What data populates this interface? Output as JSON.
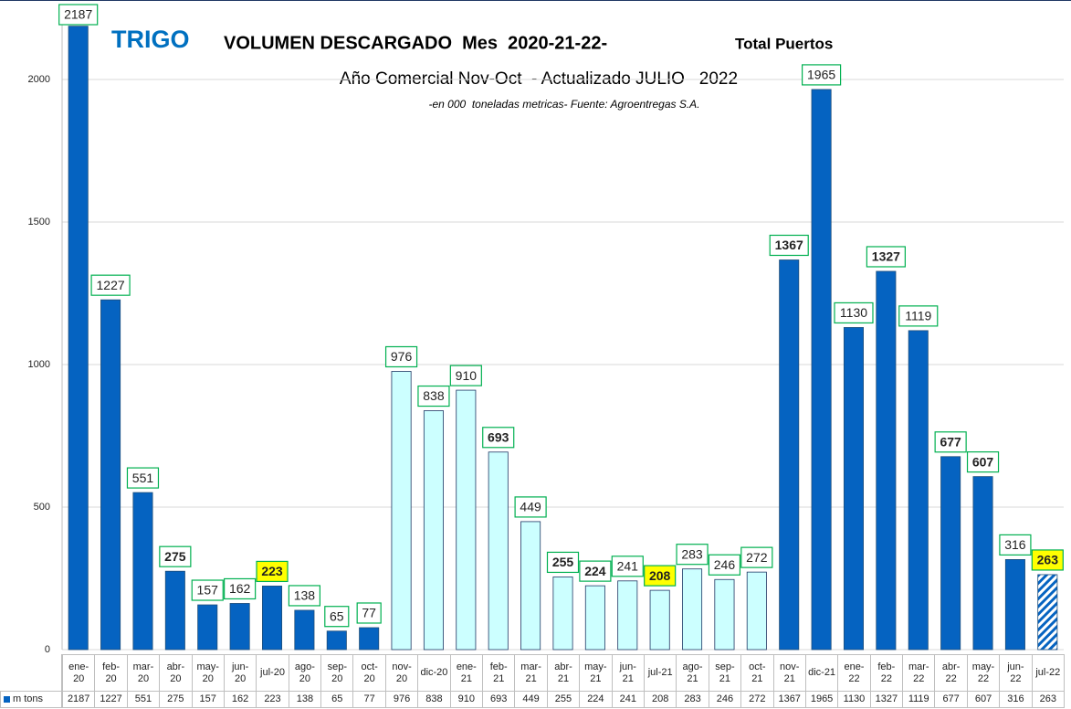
{
  "chart_data": {
    "type": "bar",
    "title": "TRIGO",
    "title_rest": "VOLUMEN DESCARGADO  Mes  2020-21-22-",
    "title_tail": "Total Puertos",
    "subtitle": "Año Comercial Nov-Oct  - Actualizado JULIO   2022",
    "note": "-en 000  toneladas metricas- Fuente: Agroentregas S.A.",
    "series_name": "m tons",
    "categories": [
      "ene-20",
      "feb-20",
      "mar-20",
      "abr-20",
      "may-20",
      "jun-20",
      "jul-20",
      "ago-20",
      "sep-20",
      "oct-20",
      "nov-20",
      "dic-20",
      "ene-21",
      "feb-21",
      "mar-21",
      "abr-21",
      "may-21",
      "jun-21",
      "jul-21",
      "ago-21",
      "sep-21",
      "oct-21",
      "nov-21",
      "dic-21",
      "ene-22",
      "feb-22",
      "mar-22",
      "abr-22",
      "may-22",
      "jun-22",
      "jul-22"
    ],
    "values": [
      2187,
      1227,
      551,
      275,
      157,
      162,
      223,
      138,
      65,
      77,
      976,
      838,
      910,
      693,
      449,
      255,
      224,
      241,
      208,
      283,
      246,
      272,
      1367,
      1965,
      1130,
      1327,
      1119,
      677,
      607,
      316,
      263
    ],
    "colors": [
      "#0563c1",
      "#0563c1",
      "#0563c1",
      "#0563c1",
      "#0563c1",
      "#0563c1",
      "#0563c1",
      "#0563c1",
      "#0563c1",
      "#0563c1",
      "#ccffff",
      "#ccffff",
      "#ccffff",
      "#ccffff",
      "#ccffff",
      "#ccffff",
      "#ccffff",
      "#ccffff",
      "#ccffff",
      "#ccffff",
      "#ccffff",
      "#ccffff",
      "#0563c1",
      "#0563c1",
      "#0563c1",
      "#0563c1",
      "#0563c1",
      "#0563c1",
      "#0563c1",
      "#0563c1",
      "#5b9bd5"
    ],
    "label_fill": [
      "#ffffff",
      "#ffffff",
      "#ffffff",
      "#ffffff",
      "#ffffff",
      "#ffffff",
      "#ffff00",
      "#ffffff",
      "#ffffff",
      "#ffffff",
      "#ffffff",
      "#ffffff",
      "#ffffff",
      "#ffffff",
      "#ffffff",
      "#ffffff",
      "#ffffff",
      "#ffffff",
      "#ffff00",
      "#ffffff",
      "#ffffff",
      "#ffffff",
      "#ffffff",
      "#ffffff",
      "#ffffff",
      "#ffffff",
      "#ffffff",
      "#ffffff",
      "#ffffff",
      "#ffffff",
      "#ffff00"
    ],
    "label_bold": [
      false,
      false,
      false,
      true,
      false,
      false,
      true,
      false,
      false,
      false,
      false,
      false,
      false,
      true,
      false,
      true,
      true,
      false,
      true,
      false,
      false,
      false,
      true,
      false,
      false,
      true,
      false,
      true,
      true,
      false,
      true
    ],
    "ylim": [
      0,
      2250
    ],
    "yticks": [
      0,
      500,
      1000,
      1500,
      2000
    ],
    "grid": true
  }
}
